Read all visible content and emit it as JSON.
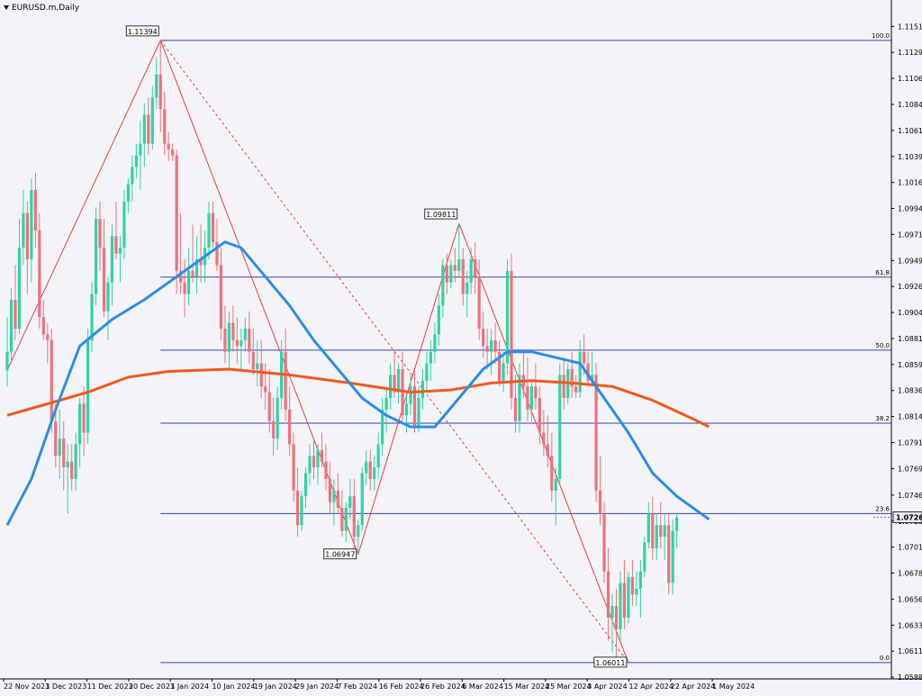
{
  "window": {
    "symbol_title": "EURUSD.m,Daily"
  },
  "colors": {
    "background": "#f4f4f8",
    "bull_candle": "#2fd3a4",
    "bear_candle": "#f0707e",
    "ma_fast": "#2b8ee8",
    "ma_slow": "#f05a1e",
    "fib_lines": "#3a40a8",
    "zigzag": "#ee3b3b",
    "current_price_bg": "#e8ecf8"
  },
  "chart_data": {
    "type": "candlestick",
    "title": "EURUSD.m,Daily",
    "y_range": [
      1.0587,
      1.1165
    ],
    "y_ticks": [
      "1.11515",
      "1.11290",
      "1.11065",
      "1.10840",
      "1.10615",
      "1.10390",
      "1.10165",
      "1.09940",
      "1.09715",
      "1.09490",
      "1.09265",
      "1.09040",
      "1.08815",
      "1.08590",
      "1.08365",
      "1.08140",
      "1.07915",
      "1.07690",
      "1.07460",
      "1.07235",
      "1.07010",
      "1.06785",
      "1.06560",
      "1.06335",
      "1.06110",
      "1.05885"
    ],
    "x_tick_labels": [
      "22 Nov 2023",
      "1 Dec 2023",
      "11 Dec 2023",
      "20 Dec 2023",
      "1 Jan 2024",
      "10 Jan 2024",
      "19 Jan 2024",
      "29 Jan 2024",
      "7 Feb 2024",
      "16 Feb 2024",
      "26 Feb 2024",
      "6 Mar 2024",
      "15 Mar 2024",
      "25 Mar 2024",
      "3 Apr 2024",
      "12 Apr 2024",
      "22 Apr 2024",
      "1 May 2024"
    ],
    "current_price": "1.07268",
    "fibonacci": {
      "levels": [
        {
          "label": "100.0",
          "price": 1.11394
        },
        {
          "label": "61.8",
          "price": 1.09346
        },
        {
          "label": "50.0",
          "price": 1.08714
        },
        {
          "label": "38.2",
          "price": 1.08082
        },
        {
          "label": "23.6",
          "price": 1.073
        },
        {
          "label": "0.0",
          "price": 1.06011
        }
      ]
    },
    "swing_labels": [
      {
        "text": "1.11394",
        "price": 1.11394,
        "bar": 38
      },
      {
        "text": "1.06947",
        "price": 1.06947,
        "bar": 87
      },
      {
        "text": "1.09811",
        "price": 1.09811,
        "bar": 112
      },
      {
        "text": "1.06011",
        "price": 1.06011,
        "bar": 154
      }
    ],
    "candles": [
      [
        1.0854,
        1.09,
        1.084,
        1.087
      ],
      [
        1.087,
        1.0925,
        1.086,
        1.0915
      ],
      [
        1.0915,
        1.0945,
        1.088,
        1.089
      ],
      [
        1.089,
        1.0985,
        1.0885,
        1.096
      ],
      [
        1.096,
        1.101,
        1.0945,
        1.099
      ],
      [
        1.099,
        1.1,
        1.092,
        1.095
      ],
      [
        1.095,
        1.102,
        1.093,
        1.101
      ],
      [
        1.101,
        1.1025,
        1.096,
        1.0975
      ],
      [
        1.0975,
        1.099,
        1.089,
        1.09
      ],
      [
        1.09,
        1.0915,
        1.088,
        1.0885
      ],
      [
        1.0885,
        1.0895,
        1.086,
        1.088
      ],
      [
        1.088,
        1.089,
        1.08,
        1.081
      ],
      [
        1.081,
        1.0825,
        1.077,
        1.078
      ],
      [
        1.078,
        1.082,
        1.076,
        1.0795
      ],
      [
        1.0795,
        1.081,
        1.075,
        1.077
      ],
      [
        1.077,
        1.079,
        1.073,
        1.0775
      ],
      [
        1.0775,
        1.079,
        1.075,
        1.076
      ],
      [
        1.076,
        1.08,
        1.075,
        1.079
      ],
      [
        1.079,
        1.083,
        1.077,
        1.0825
      ],
      [
        1.0825,
        1.084,
        1.078,
        1.08
      ],
      [
        1.08,
        1.089,
        1.079,
        1.088
      ],
      [
        1.088,
        1.093,
        1.087,
        1.092
      ],
      [
        1.092,
        1.0995,
        1.091,
        1.0985
      ],
      [
        1.0985,
        1.1,
        1.094,
        1.096
      ],
      [
        1.096,
        1.0985,
        1.09,
        1.0905
      ],
      [
        1.0905,
        1.0935,
        1.088,
        1.093
      ],
      [
        1.093,
        1.098,
        1.091,
        1.097
      ],
      [
        1.097,
        1.1,
        1.095,
        1.0955
      ],
      [
        1.0955,
        1.097,
        1.093,
        1.096
      ],
      [
        1.096,
        1.101,
        1.095,
        1.1
      ],
      [
        1.1,
        1.102,
        1.099,
        1.1015
      ],
      [
        1.1015,
        1.104,
        1.1,
        1.103
      ],
      [
        1.103,
        1.105,
        1.102,
        1.104
      ],
      [
        1.104,
        1.107,
        1.101,
        1.105
      ],
      [
        1.105,
        1.1085,
        1.103,
        1.1075
      ],
      [
        1.1075,
        1.109,
        1.104,
        1.105
      ],
      [
        1.105,
        1.11,
        1.1045,
        1.109
      ],
      [
        1.109,
        1.1125,
        1.108,
        1.111
      ],
      [
        1.111,
        1.11394,
        1.106,
        1.108
      ],
      [
        1.108,
        1.1095,
        1.104,
        1.105
      ],
      [
        1.105,
        1.106,
        1.1035,
        1.1045
      ],
      [
        1.1045,
        1.105,
        1.1035,
        1.104
      ],
      [
        1.104,
        1.1045,
        1.092,
        1.094
      ],
      [
        1.094,
        1.099,
        1.092,
        1.093
      ],
      [
        1.093,
        1.095,
        1.09,
        1.092
      ],
      [
        1.092,
        1.096,
        1.091,
        1.094
      ],
      [
        1.094,
        1.098,
        1.093,
        1.0935
      ],
      [
        1.0935,
        1.097,
        1.092,
        1.095
      ],
      [
        1.095,
        1.098,
        1.093,
        1.0945
      ],
      [
        1.0945,
        1.0975,
        1.093,
        1.096
      ],
      [
        1.096,
        1.1,
        1.095,
        1.099
      ],
      [
        1.099,
        1.1,
        1.096,
        1.0965
      ],
      [
        1.0965,
        1.0985,
        1.094,
        1.0945
      ],
      [
        1.0945,
        1.096,
        1.088,
        1.089
      ],
      [
        1.089,
        1.091,
        1.086,
        1.087
      ],
      [
        1.087,
        1.0905,
        1.0855,
        1.0895
      ],
      [
        1.0895,
        1.091,
        1.087,
        1.088
      ],
      [
        1.088,
        1.09,
        1.086,
        1.0875
      ],
      [
        1.0875,
        1.089,
        1.0855,
        1.088
      ],
      [
        1.088,
        1.09,
        1.087,
        1.089
      ],
      [
        1.089,
        1.0905,
        1.086,
        1.087
      ],
      [
        1.087,
        1.089,
        1.085,
        1.0855
      ],
      [
        1.0855,
        1.088,
        1.084,
        1.086
      ],
      [
        1.086,
        1.088,
        1.083,
        1.084
      ],
      [
        1.084,
        1.086,
        1.082,
        1.0835
      ],
      [
        1.0835,
        1.0855,
        1.08,
        1.081
      ],
      [
        1.081,
        1.083,
        1.078,
        1.0795
      ],
      [
        1.0795,
        1.084,
        1.0785,
        1.083
      ],
      [
        1.083,
        1.088,
        1.082,
        1.087
      ],
      [
        1.087,
        1.089,
        1.081,
        1.082
      ],
      [
        1.082,
        1.084,
        1.078,
        1.079
      ],
      [
        1.079,
        1.08,
        1.074,
        1.075
      ],
      [
        1.075,
        1.077,
        1.071,
        1.072
      ],
      [
        1.072,
        1.075,
        1.0715,
        1.0745
      ],
      [
        1.0745,
        1.077,
        1.0735,
        1.0765
      ],
      [
        1.0765,
        1.079,
        1.0755,
        1.078
      ],
      [
        1.078,
        1.0795,
        1.076,
        1.077
      ],
      [
        1.077,
        1.079,
        1.0755,
        1.0785
      ],
      [
        1.0785,
        1.08,
        1.077,
        1.0775
      ],
      [
        1.0775,
        1.079,
        1.075,
        1.076
      ],
      [
        1.076,
        1.0775,
        1.073,
        1.074
      ],
      [
        1.074,
        1.076,
        1.072,
        1.075
      ],
      [
        1.075,
        1.0765,
        1.073,
        1.0735
      ],
      [
        1.0735,
        1.075,
        1.071,
        1.0715
      ],
      [
        1.0715,
        1.074,
        1.0705,
        1.0735
      ],
      [
        1.0735,
        1.076,
        1.0725,
        1.0745
      ],
      [
        1.0745,
        1.076,
        1.07,
        1.071
      ],
      [
        1.071,
        1.0725,
        1.06947,
        1.072
      ],
      [
        1.072,
        1.077,
        1.0715,
        1.0765
      ],
      [
        1.0765,
        1.0785,
        1.0755,
        1.0775
      ],
      [
        1.0775,
        1.0785,
        1.075,
        1.076
      ],
      [
        1.076,
        1.078,
        1.075,
        1.077
      ],
      [
        1.077,
        1.08,
        1.076,
        1.079
      ],
      [
        1.079,
        1.083,
        1.078,
        1.082
      ],
      [
        1.082,
        1.084,
        1.08,
        1.083
      ],
      [
        1.083,
        1.086,
        1.082,
        1.085
      ],
      [
        1.085,
        1.087,
        1.083,
        1.0835
      ],
      [
        1.0835,
        1.086,
        1.0825,
        1.0855
      ],
      [
        1.0855,
        1.087,
        1.081,
        1.0815
      ],
      [
        1.0815,
        1.083,
        1.08,
        1.0825
      ],
      [
        1.0825,
        1.085,
        1.0815,
        1.084
      ],
      [
        1.084,
        1.0855,
        1.08,
        1.0805
      ],
      [
        1.0805,
        1.084,
        1.08,
        1.083
      ],
      [
        1.083,
        1.0855,
        1.082,
        1.0845
      ],
      [
        1.0845,
        1.087,
        1.0835,
        1.086
      ],
      [
        1.086,
        1.088,
        1.0845,
        1.087
      ],
      [
        1.087,
        1.0895,
        1.086,
        1.0885
      ],
      [
        1.0885,
        1.092,
        1.0875,
        1.091
      ],
      [
        1.091,
        1.095,
        1.09,
        1.0945
      ],
      [
        1.0945,
        1.0955,
        1.092,
        1.093
      ],
      [
        1.093,
        1.095,
        1.0925,
        1.0945
      ],
      [
        1.0945,
        1.096,
        1.093,
        1.094
      ],
      [
        1.094,
        1.09811,
        1.0935,
        1.095
      ],
      [
        1.095,
        1.096,
        1.091,
        1.092
      ],
      [
        1.092,
        1.094,
        1.09,
        1.093
      ],
      [
        1.093,
        1.096,
        1.092,
        1.095
      ],
      [
        1.095,
        1.0965,
        1.092,
        1.0935
      ],
      [
        1.0935,
        1.095,
        1.088,
        1.089
      ],
      [
        1.089,
        1.0905,
        1.0865,
        1.0875
      ],
      [
        1.0875,
        1.089,
        1.0855,
        1.087
      ],
      [
        1.087,
        1.089,
        1.085,
        1.088
      ],
      [
        1.088,
        1.0895,
        1.086,
        1.087
      ],
      [
        1.087,
        1.088,
        1.084,
        1.0845
      ],
      [
        1.0845,
        1.087,
        1.0835,
        1.086
      ],
      [
        1.086,
        1.095,
        1.085,
        1.094
      ],
      [
        1.094,
        1.0955,
        1.082,
        1.083
      ],
      [
        1.083,
        1.085,
        1.08,
        1.081
      ],
      [
        1.081,
        1.086,
        1.08,
        1.085
      ],
      [
        1.085,
        1.087,
        1.083,
        1.084
      ],
      [
        1.084,
        1.0865,
        1.081,
        1.082
      ],
      [
        1.082,
        1.0845,
        1.081,
        1.084
      ],
      [
        1.084,
        1.086,
        1.082,
        1.083
      ],
      [
        1.083,
        1.084,
        1.079,
        1.08
      ],
      [
        1.08,
        1.082,
        1.078,
        1.079
      ],
      [
        1.079,
        1.0815,
        1.077,
        1.078
      ],
      [
        1.078,
        1.08,
        1.074,
        1.075
      ],
      [
        1.075,
        1.077,
        1.072,
        1.076
      ],
      [
        1.076,
        1.086,
        1.0755,
        1.085
      ],
      [
        1.085,
        1.0865,
        1.082,
        1.083
      ],
      [
        1.083,
        1.086,
        1.0825,
        1.0855
      ],
      [
        1.0855,
        1.087,
        1.083,
        1.084
      ],
      [
        1.084,
        1.085,
        1.083,
        1.0835
      ],
      [
        1.0835,
        1.088,
        1.083,
        1.087
      ],
      [
        1.087,
        1.0885,
        1.085,
        1.086
      ],
      [
        1.086,
        1.087,
        1.084,
        1.0845
      ],
      [
        1.0845,
        1.087,
        1.084,
        1.085
      ],
      [
        1.085,
        1.086,
        1.074,
        1.075
      ],
      [
        1.075,
        1.078,
        1.072,
        1.073
      ],
      [
        1.073,
        1.074,
        1.067,
        1.068
      ],
      [
        1.068,
        1.07,
        1.062,
        1.064
      ],
      [
        1.064,
        1.066,
        1.061,
        1.065
      ],
      [
        1.065,
        1.0665,
        1.06011,
        1.063
      ],
      [
        1.063,
        1.068,
        1.062,
        1.067
      ],
      [
        1.067,
        1.069,
        1.063,
        1.064
      ],
      [
        1.064,
        1.068,
        1.0635,
        1.0675
      ],
      [
        1.0675,
        1.069,
        1.065,
        1.066
      ],
      [
        1.066,
        1.068,
        1.065,
        1.0665
      ],
      [
        1.0665,
        1.069,
        1.064,
        1.068
      ],
      [
        1.068,
        1.071,
        1.0675,
        1.0705
      ],
      [
        1.0705,
        1.074,
        1.07,
        1.073
      ],
      [
        1.073,
        1.0745,
        1.069,
        1.07
      ],
      [
        1.07,
        1.073,
        1.069,
        1.072
      ],
      [
        1.072,
        1.074,
        1.07,
        1.071
      ],
      [
        1.071,
        1.073,
        1.069,
        1.072
      ],
      [
        1.072,
        1.073,
        1.066,
        1.067
      ],
      [
        1.067,
        1.0725,
        1.066,
        1.0715
      ],
      [
        1.0715,
        1.073,
        1.07,
        1.07268
      ]
    ],
    "ma_fast_points": [
      [
        0,
        1.072
      ],
      [
        6,
        1.076
      ],
      [
        12,
        1.082
      ],
      [
        18,
        1.0875
      ],
      [
        26,
        1.0898
      ],
      [
        34,
        1.0915
      ],
      [
        42,
        1.0935
      ],
      [
        48,
        1.095
      ],
      [
        54,
        1.0965
      ],
      [
        58,
        1.096
      ],
      [
        64,
        1.0935
      ],
      [
        70,
        1.091
      ],
      [
        76,
        1.088
      ],
      [
        82,
        1.0855
      ],
      [
        88,
        1.083
      ],
      [
        94,
        1.0815
      ],
      [
        100,
        1.0805
      ],
      [
        106,
        1.0805
      ],
      [
        112,
        1.083
      ],
      [
        118,
        1.0855
      ],
      [
        124,
        1.087
      ],
      [
        130,
        1.087
      ],
      [
        136,
        1.0865
      ],
      [
        142,
        1.086
      ],
      [
        148,
        1.083
      ],
      [
        154,
        1.08
      ],
      [
        160,
        1.0765
      ],
      [
        166,
        1.0745
      ],
      [
        170,
        1.0735
      ],
      [
        174,
        1.0725
      ]
    ],
    "ma_slow_points": [
      [
        0,
        1.0815
      ],
      [
        10,
        1.0825
      ],
      [
        20,
        1.0835
      ],
      [
        30,
        1.0848
      ],
      [
        40,
        1.0853
      ],
      [
        55,
        1.0855
      ],
      [
        70,
        1.085
      ],
      [
        85,
        1.0843
      ],
      [
        100,
        1.0835
      ],
      [
        110,
        1.0837
      ],
      [
        120,
        1.0843
      ],
      [
        130,
        1.0845
      ],
      [
        140,
        1.0843
      ],
      [
        150,
        1.084
      ],
      [
        160,
        1.0828
      ],
      [
        170,
        1.0812
      ],
      [
        174,
        1.0805
      ]
    ]
  }
}
